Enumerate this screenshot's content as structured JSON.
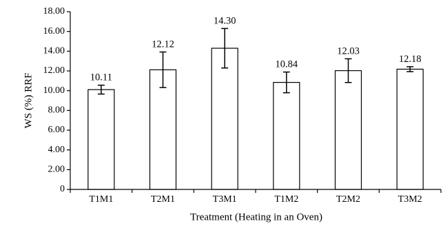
{
  "chart_data": {
    "type": "bar",
    "title": "",
    "xlabel": "Treatment (Heating in an Oven)",
    "ylabel": "WS (%) RRF",
    "categories": [
      "T1M1",
      "T2M1",
      "T3M1",
      "T1M2",
      "T2M2",
      "T3M2"
    ],
    "values": [
      10.11,
      12.12,
      14.3,
      10.84,
      12.03,
      12.18
    ],
    "value_labels": [
      "10.11",
      "12.12",
      "14.30",
      "10.84",
      "12.03",
      "12.18"
    ],
    "error": [
      0.45,
      1.8,
      2.0,
      1.05,
      1.2,
      0.25
    ],
    "ylim": [
      0,
      18
    ],
    "yticks": [
      0,
      2,
      4,
      6,
      8,
      10,
      12,
      14,
      16,
      18
    ],
    "ytick_labels": [
      "0",
      "2.00",
      "4.00",
      "6.00",
      "8.00",
      "10.00",
      "12.00",
      "14.00",
      "16.00",
      "18.00"
    ],
    "grid": false,
    "bar_fill": "#ffffff",
    "bar_stroke": "#000000"
  }
}
